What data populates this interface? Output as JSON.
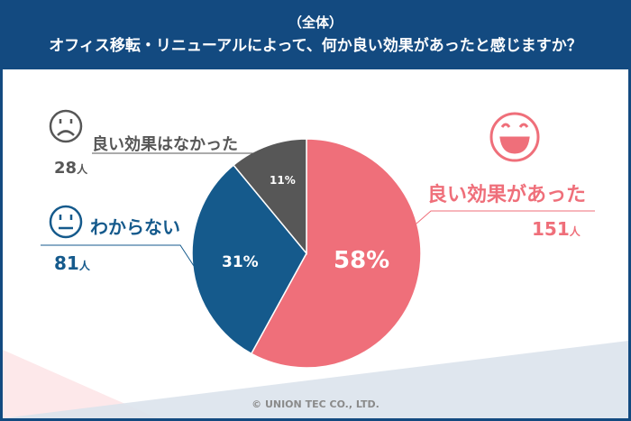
{
  "header": {
    "subtitle": "（全体）",
    "question": "オフィス移転・リニューアルによって、何か良い効果があったと感じますか？"
  },
  "colors": {
    "good": "#ef6f7a",
    "unknown": "#155a8c",
    "none": "#575757",
    "frame": "#134a80"
  },
  "chart_data": {
    "type": "pie",
    "title": "オフィス移転・リニューアルによって、何か良い効果があったと感じますか？（全体）",
    "slices": [
      {
        "label": "良い効果があった",
        "count": "151",
        "unit": "人",
        "percent": 58,
        "percent_label": "58%",
        "color": "#ef6f7a",
        "icon": "smile-icon"
      },
      {
        "label": "わからない",
        "count": "81",
        "unit": "人",
        "percent": 31,
        "percent_label": "31%",
        "color": "#155a8c",
        "icon": "neutral-face-icon"
      },
      {
        "label": "良い効果はなかった",
        "count": "28",
        "unit": "人",
        "percent": 11,
        "percent_label": "11%",
        "color": "#575757",
        "icon": "frown-icon"
      }
    ]
  },
  "footer": {
    "copyright": "© UNION TEC CO., LTD."
  }
}
